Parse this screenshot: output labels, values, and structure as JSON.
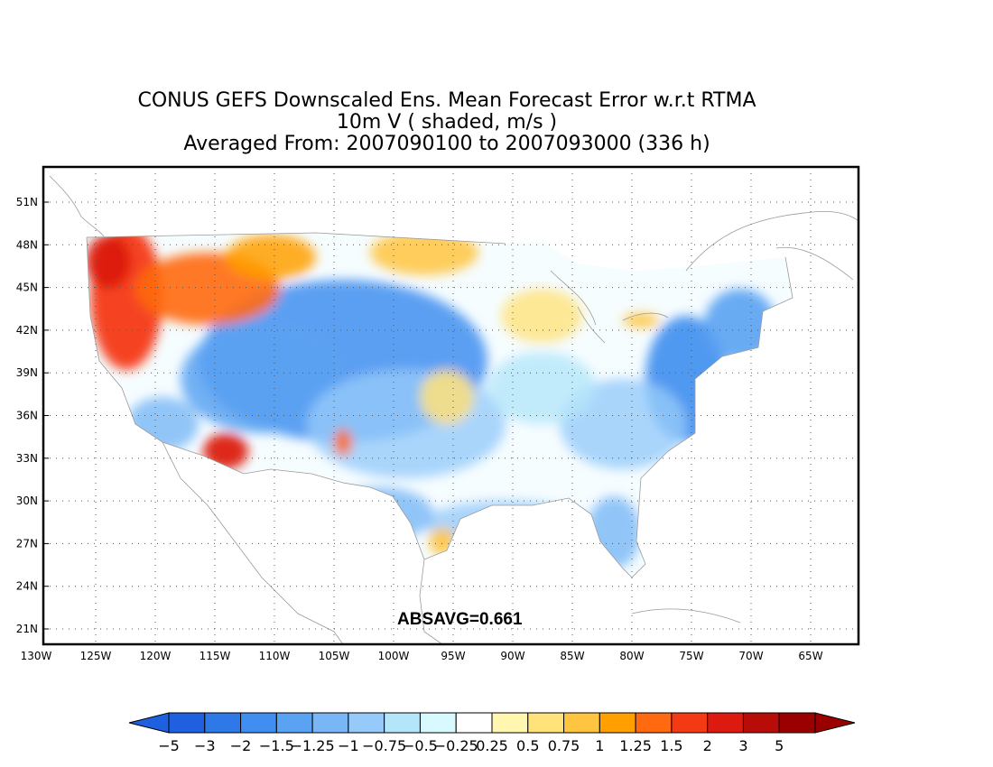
{
  "title": {
    "line1": "CONUS GEFS Downscaled Ens. Mean Forecast Error w.r.t RTMA",
    "line2": "10m V ( shaded, m/s )",
    "line3": "Averaged From: 2007090100 to 2007093000 (336 h)"
  },
  "map": {
    "lat_labels": [
      "51N",
      "48N",
      "45N",
      "42N",
      "39N",
      "36N",
      "33N",
      "30N",
      "27N",
      "24N",
      "21N"
    ],
    "lon_labels": [
      "130W",
      "125W",
      "120W",
      "115W",
      "110W",
      "105W",
      "100W",
      "95W",
      "90W",
      "85W",
      "80W",
      "75W",
      "70W",
      "65W"
    ],
    "grid": true,
    "absavg_label": "ABSAVG=0.661"
  },
  "colorbar": {
    "labels": [
      "−5",
      "−3",
      "−2",
      "−1.5",
      "−1.25",
      "−1",
      "−0.75",
      "−0.5",
      "−0.25",
      "0.25",
      "0.5",
      "0.75",
      "1",
      "1.25",
      "1.5",
      "2",
      "3",
      "5"
    ],
    "colors": [
      "#1e60e0",
      "#2e78e8",
      "#3f8ef0",
      "#5aa2f2",
      "#78b6f6",
      "#96cafa",
      "#b4e6fa",
      "#d8fafe",
      "#ffffff",
      "#fff6b0",
      "#ffe27a",
      "#ffc440",
      "#ff9f00",
      "#ff6a10",
      "#f43a14",
      "#dc1a10",
      "#b80c08",
      "#9a0000"
    ],
    "left_arrow_color": "#1e60e0",
    "right_arrow_color": "#9a0000"
  }
}
